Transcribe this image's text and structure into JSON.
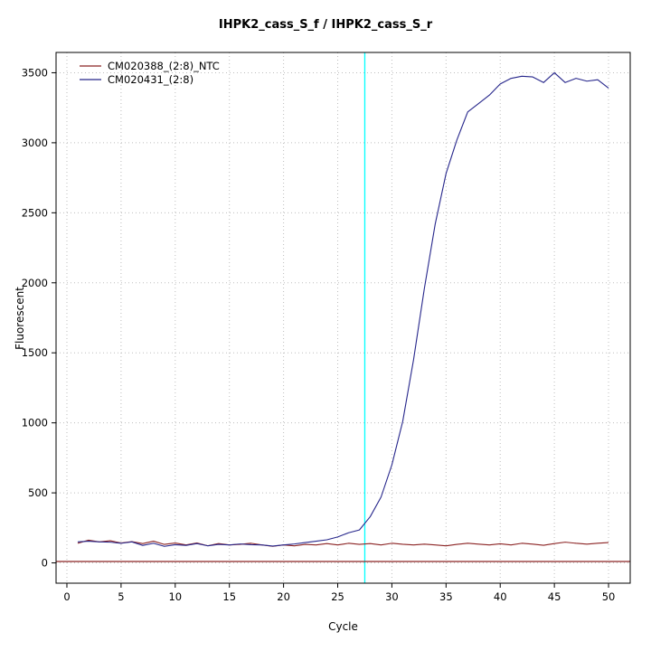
{
  "chart_data": {
    "type": "line",
    "title": "IHPK2_cass_S_f / IHPK2_cass_S_r",
    "xlabel": "Cycle",
    "ylabel": "Fluorescent",
    "xlim": [
      -1,
      52
    ],
    "ylim": [
      -145,
      3645
    ],
    "xticks": [
      0,
      5,
      10,
      15,
      20,
      25,
      30,
      35,
      40,
      45,
      50
    ],
    "yticks": [
      0,
      500,
      1000,
      1500,
      2000,
      2500,
      3000,
      3500
    ],
    "grid": "dotted",
    "grid_color": "#bdbdbd",
    "legend_position": "top-left",
    "threshold_line": {
      "x": 27.5,
      "color": "#00ffff"
    },
    "baseline": {
      "y": 10,
      "color": "#8b2323"
    },
    "series": [
      {
        "name": "CM020388_(2:8)_NTC",
        "color": "#8b2323",
        "values": [
          140,
          162,
          150,
          158,
          142,
          152,
          138,
          155,
          132,
          142,
          128,
          142,
          122,
          138,
          128,
          132,
          140,
          128,
          118,
          128,
          122,
          132,
          128,
          138,
          128,
          140,
          132,
          138,
          128,
          140,
          133,
          128,
          134,
          128,
          122,
          132,
          140,
          134,
          128,
          136,
          128,
          140,
          134,
          126,
          138,
          148,
          140,
          134,
          140,
          145
        ]
      },
      {
        "name": "CM020431_(2:8)",
        "color": "#26268b",
        "values": [
          150,
          155,
          150,
          148,
          140,
          150,
          125,
          140,
          118,
          130,
          125,
          138,
          122,
          132,
          128,
          135,
          130,
          128,
          120,
          128,
          135,
          145,
          155,
          165,
          185,
          215,
          235,
          330,
          470,
          700,
          1010,
          1450,
          1960,
          2420,
          2780,
          3020,
          3220,
          3280,
          3340,
          3420,
          3460,
          3475,
          3470,
          3430,
          3500,
          3430,
          3460,
          3440,
          3450,
          3390
        ]
      }
    ]
  }
}
